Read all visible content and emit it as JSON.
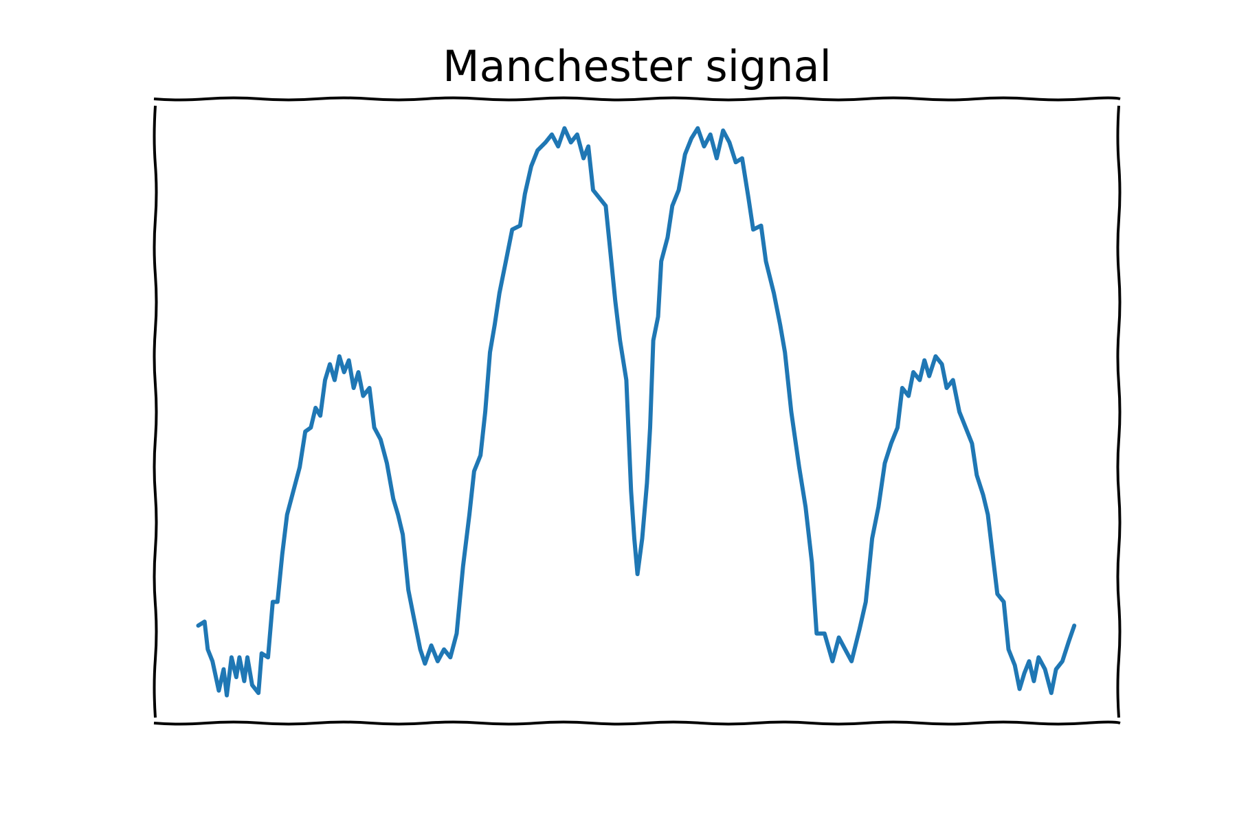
{
  "chart_data": {
    "type": "line",
    "title": "Manchester signal",
    "xlim": [
      0,
      1217
    ],
    "ylim": [
      0,
      788
    ],
    "x": [
      55,
      63,
      67,
      73,
      81,
      87,
      91,
      97,
      103,
      107,
      113,
      117,
      123,
      131,
      135,
      143,
      149,
      155,
      161,
      167,
      175,
      183,
      190,
      197,
      203,
      209,
      215,
      221,
      227,
      233,
      239,
      245,
      251,
      257,
      263,
      271,
      277,
      285,
      293,
      301,
      307,
      313,
      320,
      327,
      335,
      341,
      349,
      357,
      365,
      373,
      381,
      389,
      397,
      403,
      411,
      417,
      423,
      429,
      435,
      443,
      451,
      461,
      467,
      475,
      483,
      493,
      501,
      509,
      517,
      525,
      533,
      541,
      547,
      553,
      561,
      569,
      575,
      581,
      587,
      595,
      601,
      605,
      609,
      615,
      621,
      625,
      629,
      635,
      639,
      647,
      653,
      661,
      669,
      677,
      685,
      693,
      701,
      709,
      717,
      725,
      733,
      741,
      749,
      755,
      765,
      771,
      781,
      789,
      795,
      803,
      813,
      821,
      829,
      835,
      845,
      855,
      863,
      871,
      879,
      889,
      897,
      905,
      913,
      921,
      929,
      937,
      943,
      951,
      957,
      965,
      971,
      977,
      985,
      993,
      999,
      1007,
      1015,
      1023,
      1031,
      1037,
      1045,
      1051,
      1057,
      1063,
      1071,
      1077,
      1085,
      1091,
      1097,
      1103,
      1109,
      1115,
      1123,
      1131,
      1137,
      1145,
      1153,
      1160
    ],
    "series": [
      {
        "color": "#1f77b4",
        "values": [
          123,
          128,
          93,
          78,
          41,
          68,
          35,
          83,
          58,
          83,
          53,
          83,
          48,
          38,
          88,
          83,
          153,
          153,
          213,
          263,
          293,
          323,
          368,
          373,
          398,
          388,
          433,
          453,
          433,
          463,
          443,
          458,
          423,
          443,
          413,
          423,
          373,
          358,
          328,
          283,
          263,
          238,
          168,
          133,
          93,
          75,
          98,
          78,
          93,
          83,
          113,
          198,
          263,
          318,
          338,
          393,
          468,
          503,
          543,
          583,
          623,
          628,
          668,
          703,
          723,
          733,
          743,
          728,
          751,
          733,
          743,
          713,
          728,
          673,
          663,
          653,
          593,
          533,
          483,
          433,
          293,
          233,
          188,
          233,
          303,
          373,
          483,
          513,
          583,
          613,
          653,
          673,
          718,
          738,
          751,
          728,
          743,
          713,
          748,
          733,
          708,
          713,
          663,
          623,
          628,
          583,
          543,
          503,
          468,
          393,
          323,
          273,
          203,
          113,
          113,
          78,
          108,
          93,
          78,
          118,
          153,
          233,
          273,
          328,
          353,
          373,
          423,
          413,
          443,
          433,
          458,
          438,
          463,
          453,
          423,
          433,
          393,
          373,
          353,
          313,
          288,
          263,
          213,
          163,
          153,
          93,
          73,
          43,
          63,
          78,
          53,
          83,
          68,
          38,
          68,
          78,
          103,
          123
        ]
      }
    ]
  }
}
